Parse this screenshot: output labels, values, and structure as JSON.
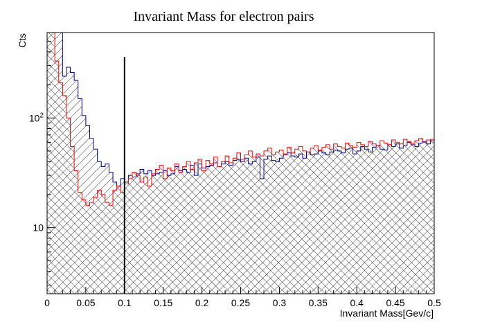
{
  "chart_data": {
    "type": "histogram",
    "title": "Invariant Mass for electron pairs",
    "xlabel": "Invariant Mass[Gev/c]",
    "ylabel": "Cts",
    "xlim": [
      0,
      0.5
    ],
    "ylim": [
      2.5,
      600
    ],
    "yscale": "log",
    "grid": false,
    "x_ticks": [
      {
        "value": 0,
        "label": "0"
      },
      {
        "value": 0.05,
        "label": "0.05"
      },
      {
        "value": 0.1,
        "label": "0.1"
      },
      {
        "value": 0.15,
        "label": "0.15"
      },
      {
        "value": 0.2,
        "label": "0.2"
      },
      {
        "value": 0.25,
        "label": "0.25"
      },
      {
        "value": 0.3,
        "label": "0.3"
      },
      {
        "value": 0.35,
        "label": "0.35"
      },
      {
        "value": 0.4,
        "label": "0.4"
      },
      {
        "value": 0.45,
        "label": "0.45"
      },
      {
        "value": 0.5,
        "label": "0.5"
      }
    ],
    "y_ticks": [
      {
        "value": 10,
        "label": "10"
      },
      {
        "value": 100,
        "label": "10^2"
      }
    ],
    "cut_line": {
      "x": 0.1,
      "y_top": 360,
      "color": "#000000"
    },
    "bin_width": 0.005,
    "series": [
      {
        "color": "#00008b",
        "fill": "hatch-down",
        "values": [
          600,
          600,
          600,
          600,
          240,
          290,
          260,
          220,
          150,
          105,
          85,
          65,
          52,
          40,
          36,
          38,
          32,
          26,
          24,
          28,
          26,
          30,
          29,
          31,
          34,
          31,
          33,
          30,
          31,
          32,
          33,
          30,
          31,
          36,
          33,
          34,
          32,
          37,
          30,
          38,
          35,
          36,
          37,
          39,
          36,
          38,
          40,
          37,
          41,
          42,
          40,
          43,
          38,
          40,
          44,
          28,
          42,
          45,
          41,
          40,
          43,
          46,
          48,
          45,
          44,
          47,
          43,
          49,
          46,
          47,
          50,
          48,
          46,
          49,
          51,
          50,
          48,
          52,
          53,
          47,
          50,
          55,
          52,
          49,
          54,
          56,
          52,
          51,
          57,
          55,
          58,
          53,
          56,
          60,
          57,
          55,
          59,
          61,
          58,
          62
        ]
      },
      {
        "color": "#ff0000",
        "fill": "hatch-up",
        "values": [
          600,
          600,
          330,
          210,
          160,
          100,
          55,
          33,
          21,
          18,
          16,
          17,
          19,
          22,
          20,
          17,
          16,
          22,
          24,
          21,
          25,
          28,
          32,
          30,
          26,
          29,
          24,
          31,
          34,
          37,
          28,
          35,
          33,
          38,
          32,
          36,
          40,
          34,
          39,
          42,
          33,
          41,
          38,
          44,
          36,
          40,
          45,
          39,
          43,
          48,
          42,
          46,
          50,
          44,
          47,
          45,
          50,
          53,
          46,
          49,
          51,
          47,
          54,
          48,
          52,
          55,
          50,
          49,
          53,
          56,
          51,
          54,
          57,
          52,
          58,
          55,
          53,
          59,
          56,
          54,
          60,
          57,
          55,
          61,
          58,
          56,
          62,
          59,
          57,
          63,
          60,
          58,
          64,
          61,
          59,
          62,
          65,
          60,
          63,
          64
        ]
      }
    ]
  }
}
